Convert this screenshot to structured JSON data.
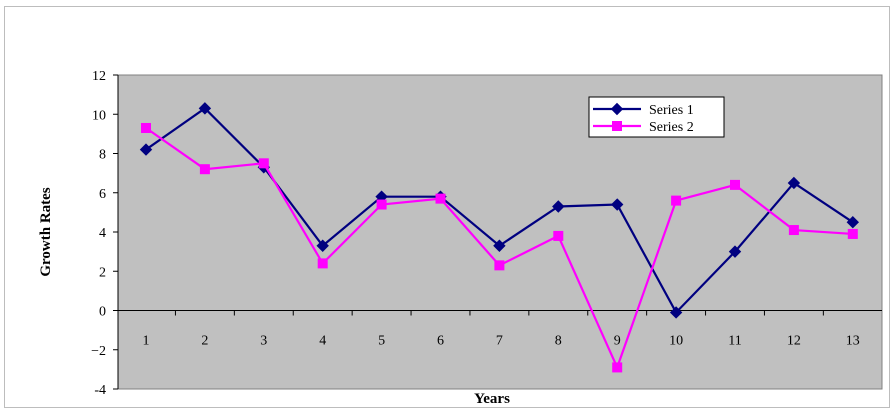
{
  "chart_data": {
    "type": "line",
    "title": "",
    "xlabel": "Years",
    "ylabel": "Growth Rates",
    "categories": [
      "1",
      "2",
      "3",
      "4",
      "5",
      "6",
      "7",
      "8",
      "9",
      "10",
      "11",
      "12",
      "13"
    ],
    "ylim": [
      -4,
      12
    ],
    "yticks": [
      -4,
      -2,
      0,
      2,
      4,
      6,
      8,
      10,
      12
    ],
    "ytick_labels": [
      "-4",
      "−2",
      "0",
      "2",
      "4",
      "6",
      "8",
      "10",
      "12"
    ],
    "grid": false,
    "plot_background": "#c0c0c0",
    "legend_position": "top-right",
    "series": [
      {
        "name": "Series 1",
        "color": "#000080",
        "marker": "diamond",
        "values": [
          8.2,
          10.3,
          7.3,
          3.3,
          5.8,
          5.8,
          3.3,
          5.3,
          5.4,
          -0.1,
          3.0,
          6.5,
          4.5
        ]
      },
      {
        "name": "Series 2",
        "color": "#ff00ff",
        "marker": "square",
        "values": [
          9.3,
          7.2,
          7.5,
          2.4,
          5.4,
          5.7,
          2.3,
          3.8,
          -2.9,
          5.6,
          6.4,
          4.1,
          3.9
        ]
      }
    ]
  }
}
